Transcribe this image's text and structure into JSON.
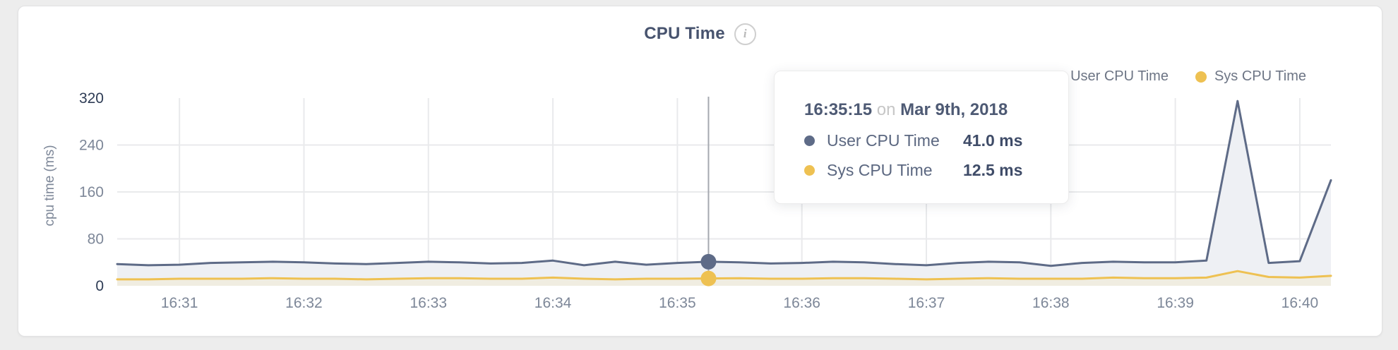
{
  "card": {
    "title": "CPU Time",
    "info_icon": "i"
  },
  "legend": {
    "items": [
      {
        "label": "User CPU Time",
        "color": "#5e6b87"
      },
      {
        "label": "Sys CPU Time",
        "color": "#eec152"
      }
    ]
  },
  "tooltip": {
    "time": "16:35:15",
    "preposition": "on",
    "date": "Mar 9th, 2018",
    "rows": [
      {
        "label": "User CPU Time",
        "value": "41.0 ms",
        "color": "#5e6b87"
      },
      {
        "label": "Sys CPU Time",
        "value": "12.5 ms",
        "color": "#eec152"
      }
    ]
  },
  "chart_data": {
    "type": "area",
    "title": "CPU Time",
    "xlabel": "",
    "ylabel": "cpu time (ms)",
    "ylim": [
      0,
      320
    ],
    "y_ticks": [
      0,
      80,
      160,
      240,
      320
    ],
    "x_ticks": [
      "16:31",
      "16:32",
      "16:33",
      "16:34",
      "16:35",
      "16:36",
      "16:37",
      "16:38",
      "16:39",
      "16:40"
    ],
    "grid": true,
    "legend_position": "top-right",
    "x": [
      "16:30:30",
      "16:30:45",
      "16:31:00",
      "16:31:15",
      "16:31:30",
      "16:31:45",
      "16:32:00",
      "16:32:15",
      "16:32:30",
      "16:32:45",
      "16:33:00",
      "16:33:15",
      "16:33:30",
      "16:33:45",
      "16:34:00",
      "16:34:15",
      "16:34:30",
      "16:34:45",
      "16:35:00",
      "16:35:15",
      "16:35:30",
      "16:35:45",
      "16:36:00",
      "16:36:15",
      "16:36:30",
      "16:36:45",
      "16:37:00",
      "16:37:15",
      "16:37:30",
      "16:37:45",
      "16:38:00",
      "16:38:15",
      "16:38:30",
      "16:38:45",
      "16:39:00",
      "16:39:15",
      "16:39:30",
      "16:39:45",
      "16:40:00",
      "16:40:15"
    ],
    "series": [
      {
        "name": "User CPU Time",
        "color": "#5e6b87",
        "fill": "#eef0f4",
        "values": [
          37,
          35,
          36,
          39,
          40,
          41,
          40,
          38,
          37,
          39,
          41,
          40,
          38,
          39,
          43,
          35,
          41,
          36,
          39,
          41,
          40,
          38,
          39,
          41,
          40,
          37,
          35,
          39,
          41,
          40,
          34,
          39,
          41,
          40,
          40,
          43,
          315,
          39,
          42,
          180
        ]
      },
      {
        "name": "Sys CPU Time",
        "color": "#eec152",
        "fill": "#f0ede1",
        "values": [
          11,
          11,
          12,
          12,
          12,
          13,
          12,
          12,
          11,
          12,
          13,
          13,
          12,
          12,
          14,
          12,
          11,
          12,
          12,
          12.5,
          13,
          12,
          12,
          13,
          13,
          12,
          11,
          12,
          13,
          12,
          12,
          12,
          14,
          13,
          13,
          14,
          25,
          15,
          14,
          17
        ]
      }
    ],
    "highlight": {
      "index": 19,
      "time": "16:35:15",
      "user_value_ms": 41.0,
      "sys_value_ms": 12.5
    },
    "colors": {
      "grid": "#e9eaec",
      "crosshair": "#a5a9b0",
      "tick_label": "#7d8798",
      "tick_label_dark": "#2e3c55"
    }
  }
}
